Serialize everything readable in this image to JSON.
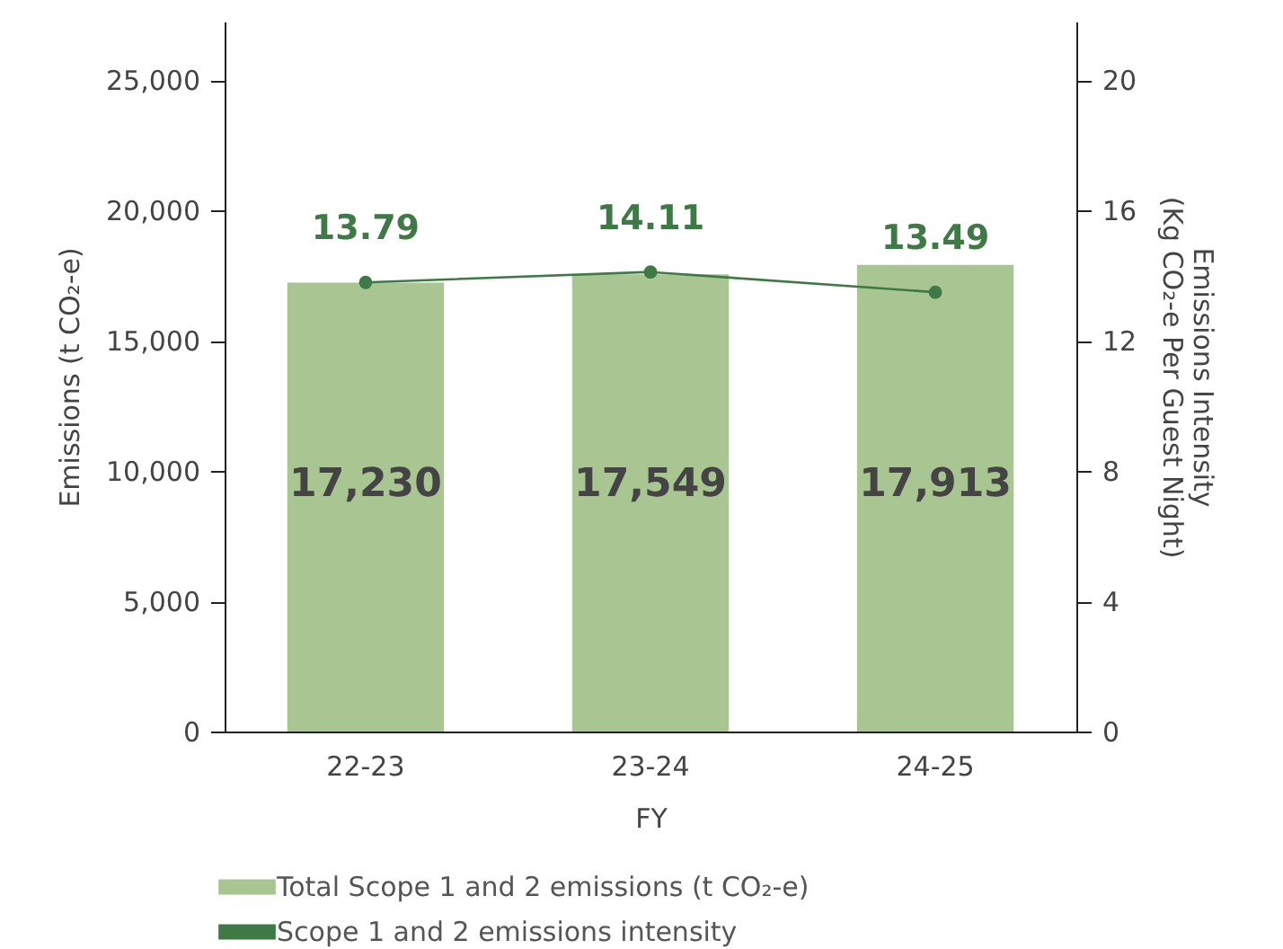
{
  "chart_data": {
    "type": "bar",
    "categories": [
      "22-23",
      "23-24",
      "24-25"
    ],
    "xlabel": "FY",
    "ylabel": "Emissions (t CO₂-e)",
    "y2label": "Emissions Intensity\n(Kg CO₂-e Per Guest Night)",
    "series": [
      {
        "name": "Total Scope 1 and 2 emissions (t CO₂-e)",
        "color": "#a9c592",
        "values": [
          17230,
          17549,
          17913
        ],
        "value_labels": [
          "17,230",
          "17,549",
          "17,913"
        ]
      },
      {
        "name": "Scope 1 and 2 emissions intensity",
        "type": "line",
        "axis": "y2",
        "color": "#3f7a46",
        "values": [
          13.79,
          14.11,
          13.49
        ]
      }
    ],
    "ylim": [
      0,
      27250
    ],
    "yticks": [
      {
        "value": 0,
        "label": "0"
      },
      {
        "value": 5000,
        "label": "5,000"
      },
      {
        "value": 10000,
        "label": "10,000"
      },
      {
        "value": 15000,
        "label": "15,000"
      },
      {
        "value": 20000,
        "label": "20,000"
      },
      {
        "value": 25000,
        "label": "25,000"
      }
    ],
    "y2lim": [
      0,
      21.8
    ],
    "y2ticks": [
      0,
      4,
      8,
      12,
      16,
      20
    ],
    "data_labels": true,
    "marker": "circle",
    "grid": false,
    "legend": "bottom"
  }
}
